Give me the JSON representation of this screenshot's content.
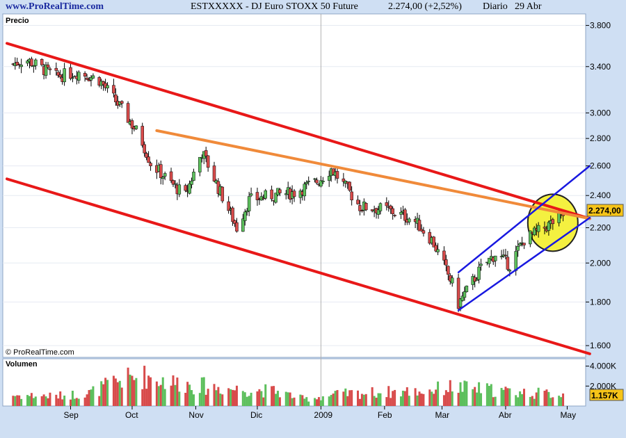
{
  "header": {
    "site": "www.ProRealTime.com",
    "instrument": "ESTXXXXX - DJ Euro STOXX 50 Future",
    "price_change": "2.274,00 (+2,52%)",
    "period": "Diario",
    "date": "29 Abr"
  },
  "colors": {
    "background": "#cfdff3",
    "plot_bg": "#ffffff",
    "up_candle": "#5cbf5c",
    "down_candle": "#d84b4b",
    "downtrend_channel": "#e81818",
    "resistance_line": "#f08a3a",
    "uptrend_channel": "#1818e0",
    "highlight_circle": "#f4f040",
    "last_price_box": "#f6c418"
  },
  "chart_data": [
    {
      "type": "candlestick",
      "title": "Precio",
      "yaxis": {
        "ticks": [
          "3.800",
          "3.400",
          "3.000",
          "2.800",
          "2.600",
          "2.400",
          "2.200",
          "2.000",
          "1.800",
          "1.600"
        ],
        "tick_values": [
          3800,
          3400,
          3000,
          2800,
          2600,
          2400,
          2200,
          2000,
          1800,
          1600
        ],
        "scale": "log",
        "range": [
          1550,
          3920
        ]
      },
      "xaxis": {
        "labels": [
          "Sep",
          "Oct",
          "Nov",
          "Dic",
          "2009",
          "Feb",
          "Mar",
          "Abr",
          "May"
        ],
        "label_dates": [
          "2008-09-01",
          "2008-10-01",
          "2008-11-01",
          "2008-12-01",
          "2009-01-01",
          "2009-02-01",
          "2009-03-01",
          "2009-04-01",
          "2009-05-01"
        ],
        "range": [
          "2008-08-01",
          "2009-05-10"
        ]
      },
      "last_price_label": "2.274,00",
      "series": {
        "anchor_dates": [
          "2008-08-01",
          "2008-08-10",
          "2008-08-25",
          "2008-09-05",
          "2008-09-15",
          "2008-09-25",
          "2008-10-05",
          "2008-10-10",
          "2008-10-20",
          "2008-10-27",
          "2008-11-04",
          "2008-11-12",
          "2008-11-21",
          "2008-11-27",
          "2008-12-08",
          "2008-12-19",
          "2008-12-31",
          "2009-01-06",
          "2009-01-20",
          "2009-02-02",
          "2009-02-15",
          "2009-02-24",
          "2009-03-06",
          "2009-03-09",
          "2009-03-20",
          "2009-03-27",
          "2009-04-03",
          "2009-04-10",
          "2009-04-20",
          "2009-04-29"
        ],
        "anchor_closes": [
          3400,
          3470,
          3310,
          3350,
          3280,
          3050,
          2810,
          2620,
          2480,
          2400,
          2700,
          2450,
          2200,
          2370,
          2400,
          2420,
          2500,
          2580,
          2330,
          2310,
          2250,
          2130,
          1890,
          1790,
          1970,
          2050,
          1990,
          2130,
          2200,
          2274
        ]
      },
      "copyright": "© ProRealTime.com",
      "annotations": [
        {
          "type": "trendline",
          "name": "downtrend-channel-upper",
          "color": "#e81818",
          "points": [
            [
              "2008-08-01",
              3620
            ],
            [
              "2009-05-12",
              2255
            ]
          ]
        },
        {
          "type": "trendline",
          "name": "downtrend-channel-lower",
          "color": "#e81818",
          "points": [
            [
              "2008-08-01",
              2510
            ],
            [
              "2009-05-12",
              1565
            ]
          ]
        },
        {
          "type": "trendline",
          "name": "resistance-line",
          "color": "#f08a3a",
          "points": [
            [
              "2008-10-13",
              2860
            ],
            [
              "2009-05-12",
              2255
            ]
          ]
        },
        {
          "type": "trendline",
          "name": "uptrend-channel-upper",
          "color": "#1818e0",
          "points": [
            [
              "2009-03-09",
              1950
            ],
            [
              "2009-05-12",
              2600
            ]
          ]
        },
        {
          "type": "trendline",
          "name": "uptrend-channel-lower",
          "color": "#1818e0",
          "points": [
            [
              "2009-03-09",
              1760
            ],
            [
              "2009-05-12",
              2260
            ]
          ]
        }
      ]
    },
    {
      "type": "bar",
      "title": "Volumen",
      "yaxis": {
        "ticks": [
          "4.000K",
          "2.000K"
        ],
        "tick_values": [
          4000,
          2000
        ],
        "range": [
          0,
          4600
        ]
      },
      "last_value_label": "1.157K",
      "series": {
        "anchor_dates": [
          "2008-08-01",
          "2008-08-25",
          "2008-09-10",
          "2008-09-25",
          "2008-10-08",
          "2008-10-20",
          "2008-11-05",
          "2008-11-20",
          "2008-12-10",
          "2008-12-24",
          "2009-01-10",
          "2009-02-01",
          "2009-02-20",
          "2009-03-05",
          "2009-03-20",
          "2009-04-05",
          "2009-04-29"
        ],
        "anchor_values": [
          1100,
          1000,
          1300,
          2600,
          3000,
          2400,
          2000,
          1700,
          1500,
          700,
          1200,
          1400,
          1500,
          1900,
          1700,
          1400,
          1157
        ]
      }
    }
  ]
}
